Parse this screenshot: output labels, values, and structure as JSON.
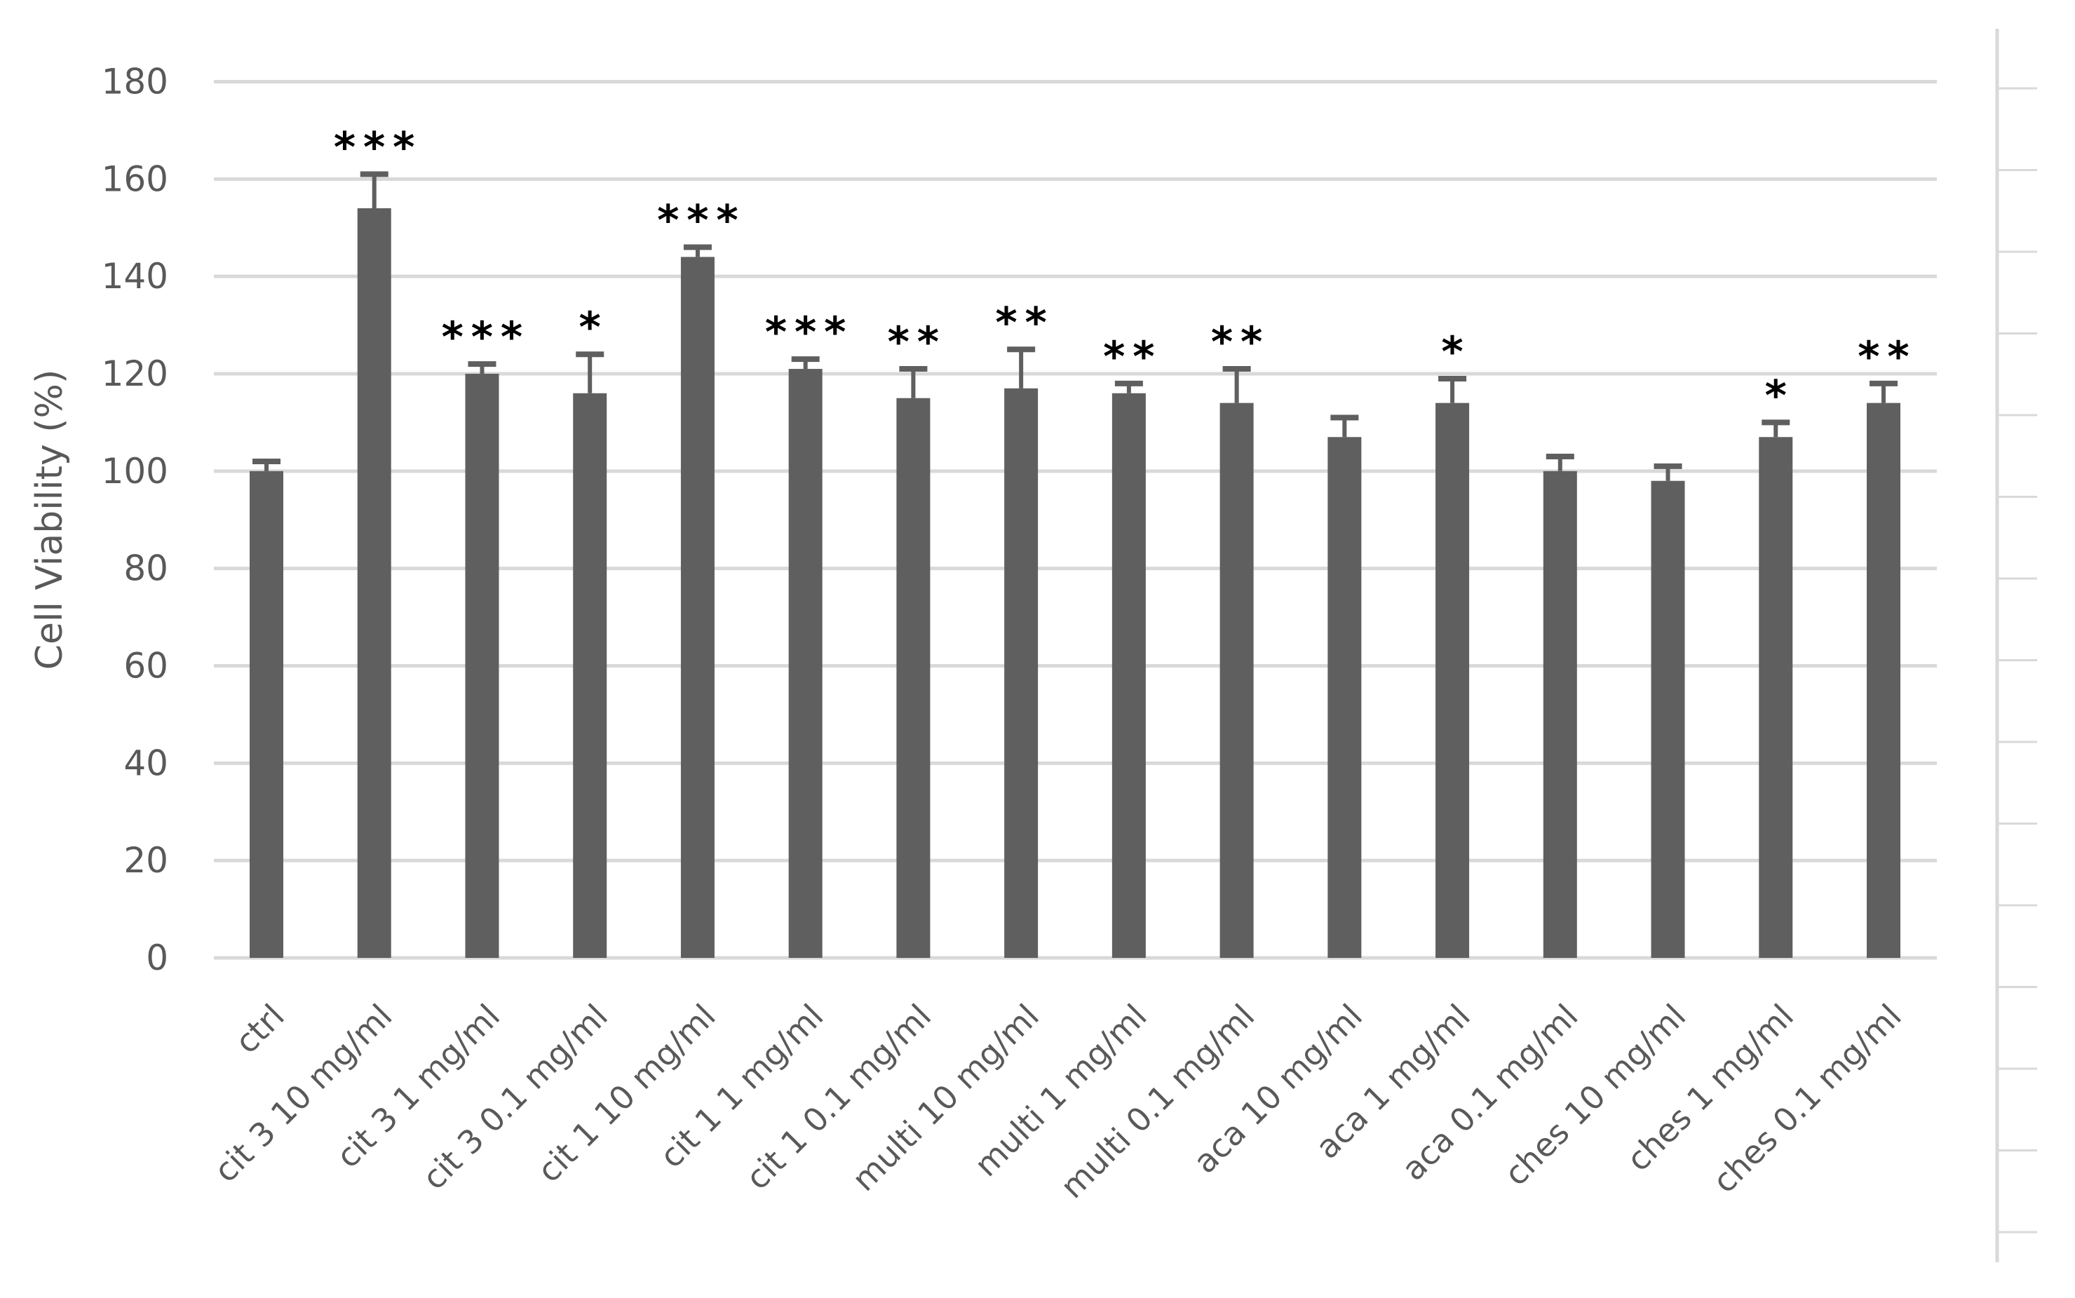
{
  "chart_data": {
    "type": "bar",
    "title": "",
    "xlabel": "",
    "ylabel": "Cell Viability (%)",
    "ylim": [
      0,
      180
    ],
    "yticks": [
      0,
      20,
      40,
      60,
      80,
      100,
      120,
      140,
      160,
      180
    ],
    "grid": true,
    "legend": null,
    "bar_color": "#5f5f5f",
    "grid_color": "#d9d9d9",
    "categories": [
      "ctrl",
      "cit 3 10 mg/ml",
      "cit 3 1 mg/ml",
      "cit 3 0.1 mg/ml",
      "cit 1 10 mg/ml",
      "cit 1 1 mg/ml",
      "cit 1 0.1 mg/ml",
      "multi 10 mg/ml",
      "multi 1 mg/ml",
      "multi 0.1 mg/ml",
      "aca 10 mg/ml",
      "aca 1 mg/ml",
      "aca 0.1 mg/ml",
      "ches 10 mg/ml",
      "ches 1 mg/ml",
      "ches 0.1 mg/ml"
    ],
    "values": [
      100,
      154,
      120,
      116,
      144,
      121,
      115,
      117,
      116,
      114,
      107,
      114,
      100,
      98,
      107,
      114
    ],
    "error_plus": [
      2,
      7,
      2,
      8,
      2,
      2,
      6,
      8,
      2,
      7,
      4,
      5,
      3,
      3,
      3,
      4
    ],
    "significance": [
      "",
      "***",
      "***",
      "*",
      "***",
      "***",
      "**",
      "**",
      "**",
      "**",
      "",
      "*",
      "",
      "",
      "*",
      "**"
    ]
  }
}
